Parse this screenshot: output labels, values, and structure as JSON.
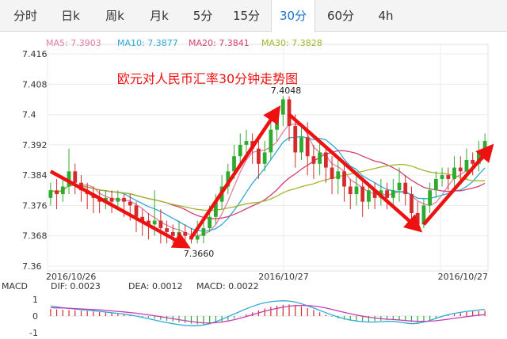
{
  "tabs": [
    {
      "label": "分时",
      "active": false
    },
    {
      "label": "日k",
      "active": false
    },
    {
      "label": "周k",
      "active": false
    },
    {
      "label": "月k",
      "active": false
    },
    {
      "label": "5分",
      "active": false
    },
    {
      "label": "15分",
      "active": false
    },
    {
      "label": "30分",
      "active": true
    },
    {
      "label": "60分",
      "active": false
    },
    {
      "label": "4h",
      "active": false
    }
  ],
  "colors": {
    "up": "#2eaa2e",
    "down": "#d22c2c",
    "arrow": "#ee1111",
    "ma5": "#e47ca3",
    "ma10": "#2fa9d8",
    "ma20": "#d63e6c",
    "ma30": "#9db82b",
    "dif": "#2fa9d8",
    "dea": "#c83bb4",
    "accent": "#1a73c9"
  },
  "chart_data": {
    "type": "candlestick",
    "title": "欧元对人民币汇率30分钟走势图",
    "ma_legend": [
      {
        "label": "MA5: 7.3903",
        "color": "#e47ca3"
      },
      {
        "label": "MA10: 7.3877",
        "color": "#2fa9d8"
      },
      {
        "label": "MA20: 7.3841",
        "color": "#d63e6c"
      },
      {
        "label": "MA30: 7.3828",
        "color": "#9db82b"
      }
    ],
    "yticks": [
      "7.416",
      "7.408",
      "7.4",
      "7.392",
      "7.384",
      "7.376",
      "7.368",
      "7.36"
    ],
    "ylim": [
      7.36,
      7.416
    ],
    "xticks": [
      "2016/10/26",
      "2016/10/27",
      "2016/10/27"
    ],
    "annotations": {
      "high": "7.4048",
      "low": "7.3660"
    },
    "macd": {
      "label": "MACD",
      "dif": "DIF: 0.0023",
      "dea": "DEA: 0.0012",
      "macd": "MACD: 0.0022",
      "yticks": [
        "1",
        "0",
        "-1"
      ]
    },
    "candles": [
      [
        7.378,
        7.38,
        7.376,
        7.382
      ],
      [
        7.38,
        7.379,
        7.375,
        7.383
      ],
      [
        7.379,
        7.381,
        7.377,
        7.383
      ],
      [
        7.381,
        7.385,
        7.379,
        7.391
      ],
      [
        7.385,
        7.382,
        7.379,
        7.387
      ],
      [
        7.382,
        7.38,
        7.377,
        7.384
      ],
      [
        7.38,
        7.379,
        7.375,
        7.382
      ],
      [
        7.379,
        7.378,
        7.374,
        7.381
      ],
      [
        7.378,
        7.377,
        7.374,
        7.38
      ],
      [
        7.377,
        7.378,
        7.375,
        7.38
      ],
      [
        7.378,
        7.377,
        7.374,
        7.38
      ],
      [
        7.377,
        7.378,
        7.375,
        7.38
      ],
      [
        7.378,
        7.377,
        7.373,
        7.379
      ],
      [
        7.377,
        7.376,
        7.372,
        7.379
      ],
      [
        7.376,
        7.373,
        7.369,
        7.377
      ],
      [
        7.373,
        7.372,
        7.368,
        7.375
      ],
      [
        7.372,
        7.371,
        7.367,
        7.374
      ],
      [
        7.371,
        7.372,
        7.368,
        7.38
      ],
      [
        7.372,
        7.37,
        7.366,
        7.375
      ],
      [
        7.37,
        7.369,
        7.366,
        7.372
      ],
      [
        7.369,
        7.368,
        7.366,
        7.371
      ],
      [
        7.368,
        7.369,
        7.366,
        7.372
      ],
      [
        7.369,
        7.368,
        7.366,
        7.371
      ],
      [
        7.368,
        7.367,
        7.366,
        7.37
      ],
      [
        7.367,
        7.368,
        7.366,
        7.372
      ],
      [
        7.368,
        7.37,
        7.366,
        7.373
      ],
      [
        7.37,
        7.373,
        7.369,
        7.376
      ],
      [
        7.373,
        7.377,
        7.371,
        7.379
      ],
      [
        7.377,
        7.381,
        7.375,
        7.384
      ],
      [
        7.381,
        7.385,
        7.379,
        7.387
      ],
      [
        7.385,
        7.389,
        7.383,
        7.392
      ],
      [
        7.389,
        7.392,
        7.386,
        7.395
      ],
      [
        7.392,
        7.393,
        7.388,
        7.396
      ],
      [
        7.393,
        7.391,
        7.387,
        7.395
      ],
      [
        7.391,
        7.387,
        7.383,
        7.393
      ],
      [
        7.387,
        7.39,
        7.385,
        7.393
      ],
      [
        7.39,
        7.396,
        7.388,
        7.399
      ],
      [
        7.396,
        7.4,
        7.393,
        7.402
      ],
      [
        7.4,
        7.404,
        7.397,
        7.4048
      ],
      [
        7.404,
        7.397,
        7.393,
        7.4048
      ],
      [
        7.397,
        7.39,
        7.386,
        7.4
      ],
      [
        7.39,
        7.394,
        7.388,
        7.397
      ],
      [
        7.394,
        7.389,
        7.384,
        7.398
      ],
      [
        7.389,
        7.387,
        7.383,
        7.392
      ],
      [
        7.387,
        7.39,
        7.384,
        7.393
      ],
      [
        7.39,
        7.386,
        7.382,
        7.392
      ],
      [
        7.386,
        7.383,
        7.379,
        7.389
      ],
      [
        7.383,
        7.385,
        7.379,
        7.388
      ],
      [
        7.385,
        7.381,
        7.377,
        7.387
      ],
      [
        7.381,
        7.379,
        7.375,
        7.383
      ],
      [
        7.379,
        7.381,
        7.376,
        7.384
      ],
      [
        7.381,
        7.377,
        7.373,
        7.383
      ],
      [
        7.377,
        7.38,
        7.375,
        7.382
      ],
      [
        7.38,
        7.378,
        7.375,
        7.382
      ],
      [
        7.378,
        7.38,
        7.376,
        7.383
      ],
      [
        7.38,
        7.378,
        7.375,
        7.382
      ],
      [
        7.378,
        7.38,
        7.376,
        7.383
      ],
      [
        7.38,
        7.382,
        7.377,
        7.386
      ],
      [
        7.382,
        7.379,
        7.376,
        7.384
      ],
      [
        7.379,
        7.374,
        7.37,
        7.381
      ],
      [
        7.374,
        7.371,
        7.3695,
        7.377
      ],
      [
        7.371,
        7.376,
        7.37,
        7.378
      ],
      [
        7.376,
        7.38,
        7.374,
        7.382
      ],
      [
        7.38,
        7.383,
        7.378,
        7.385
      ],
      [
        7.383,
        7.384,
        7.381,
        7.386
      ],
      [
        7.384,
        7.383,
        7.38,
        7.386
      ],
      [
        7.383,
        7.386,
        7.381,
        7.389
      ],
      [
        7.386,
        7.385,
        7.382,
        7.389
      ],
      [
        7.385,
        7.388,
        7.383,
        7.391
      ],
      [
        7.388,
        7.387,
        7.384,
        7.39
      ],
      [
        7.387,
        7.39,
        7.385,
        7.393
      ],
      [
        7.39,
        7.393,
        7.388,
        7.395
      ]
    ],
    "macd_bars": [
      0.42,
      0.4,
      0.38,
      0.36,
      0.34,
      0.32,
      0.3,
      0.27,
      0.24,
      0.21,
      0.18,
      0.14,
      0.1,
      0.06,
      0.02,
      -0.04,
      -0.1,
      -0.16,
      -0.22,
      -0.28,
      -0.33,
      -0.38,
      -0.42,
      -0.46,
      -0.5,
      -0.52,
      -0.5,
      -0.44,
      -0.36,
      -0.26,
      -0.14,
      -0.02,
      0.1,
      0.22,
      0.34,
      0.45,
      0.55,
      0.62,
      0.68,
      0.7,
      0.66,
      0.58,
      0.48,
      0.36,
      0.22,
      0.08,
      -0.04,
      -0.14,
      -0.22,
      -0.28,
      -0.32,
      -0.34,
      -0.34,
      -0.32,
      -0.28,
      -0.24,
      -0.22,
      -0.24,
      -0.3,
      -0.36,
      -0.4,
      -0.34,
      -0.26,
      -0.16,
      -0.06,
      0.04,
      0.12,
      0.18,
      0.24,
      0.28,
      0.3,
      0.32
    ],
    "dif": [
      0.6,
      0.55,
      0.5,
      0.46,
      0.42,
      0.38,
      0.35,
      0.32,
      0.28,
      0.24,
      0.2,
      0.16,
      0.12,
      0.06,
      0.0,
      -0.08,
      -0.16,
      -0.24,
      -0.32,
      -0.4,
      -0.46,
      -0.52,
      -0.56,
      -0.58,
      -0.58,
      -0.54,
      -0.46,
      -0.34,
      -0.2,
      -0.04,
      0.12,
      0.28,
      0.44,
      0.58,
      0.7,
      0.8,
      0.86,
      0.9,
      0.92,
      0.9,
      0.84,
      0.74,
      0.62,
      0.48,
      0.34,
      0.2,
      0.06,
      -0.06,
      -0.16,
      -0.24,
      -0.3,
      -0.34,
      -0.36,
      -0.36,
      -0.34,
      -0.32,
      -0.32,
      -0.36,
      -0.42,
      -0.46,
      -0.44,
      -0.36,
      -0.26,
      -0.14,
      -0.02,
      0.08,
      0.16,
      0.22,
      0.28,
      0.32,
      0.36,
      0.4
    ],
    "dea": [
      0.5,
      0.49,
      0.48,
      0.47,
      0.45,
      0.43,
      0.41,
      0.39,
      0.37,
      0.34,
      0.31,
      0.28,
      0.25,
      0.21,
      0.17,
      0.12,
      0.07,
      0.02,
      -0.04,
      -0.1,
      -0.16,
      -0.22,
      -0.28,
      -0.33,
      -0.38,
      -0.41,
      -0.42,
      -0.4,
      -0.36,
      -0.3,
      -0.22,
      -0.13,
      -0.03,
      0.08,
      0.19,
      0.29,
      0.38,
      0.46,
      0.53,
      0.59,
      0.63,
      0.64,
      0.63,
      0.6,
      0.55,
      0.48,
      0.4,
      0.31,
      0.22,
      0.14,
      0.06,
      -0.01,
      -0.07,
      -0.12,
      -0.16,
      -0.19,
      -0.21,
      -0.24,
      -0.27,
      -0.3,
      -0.32,
      -0.32,
      -0.31,
      -0.28,
      -0.24,
      -0.19,
      -0.14,
      -0.09,
      -0.04,
      0.01,
      0.05,
      0.09
    ]
  }
}
